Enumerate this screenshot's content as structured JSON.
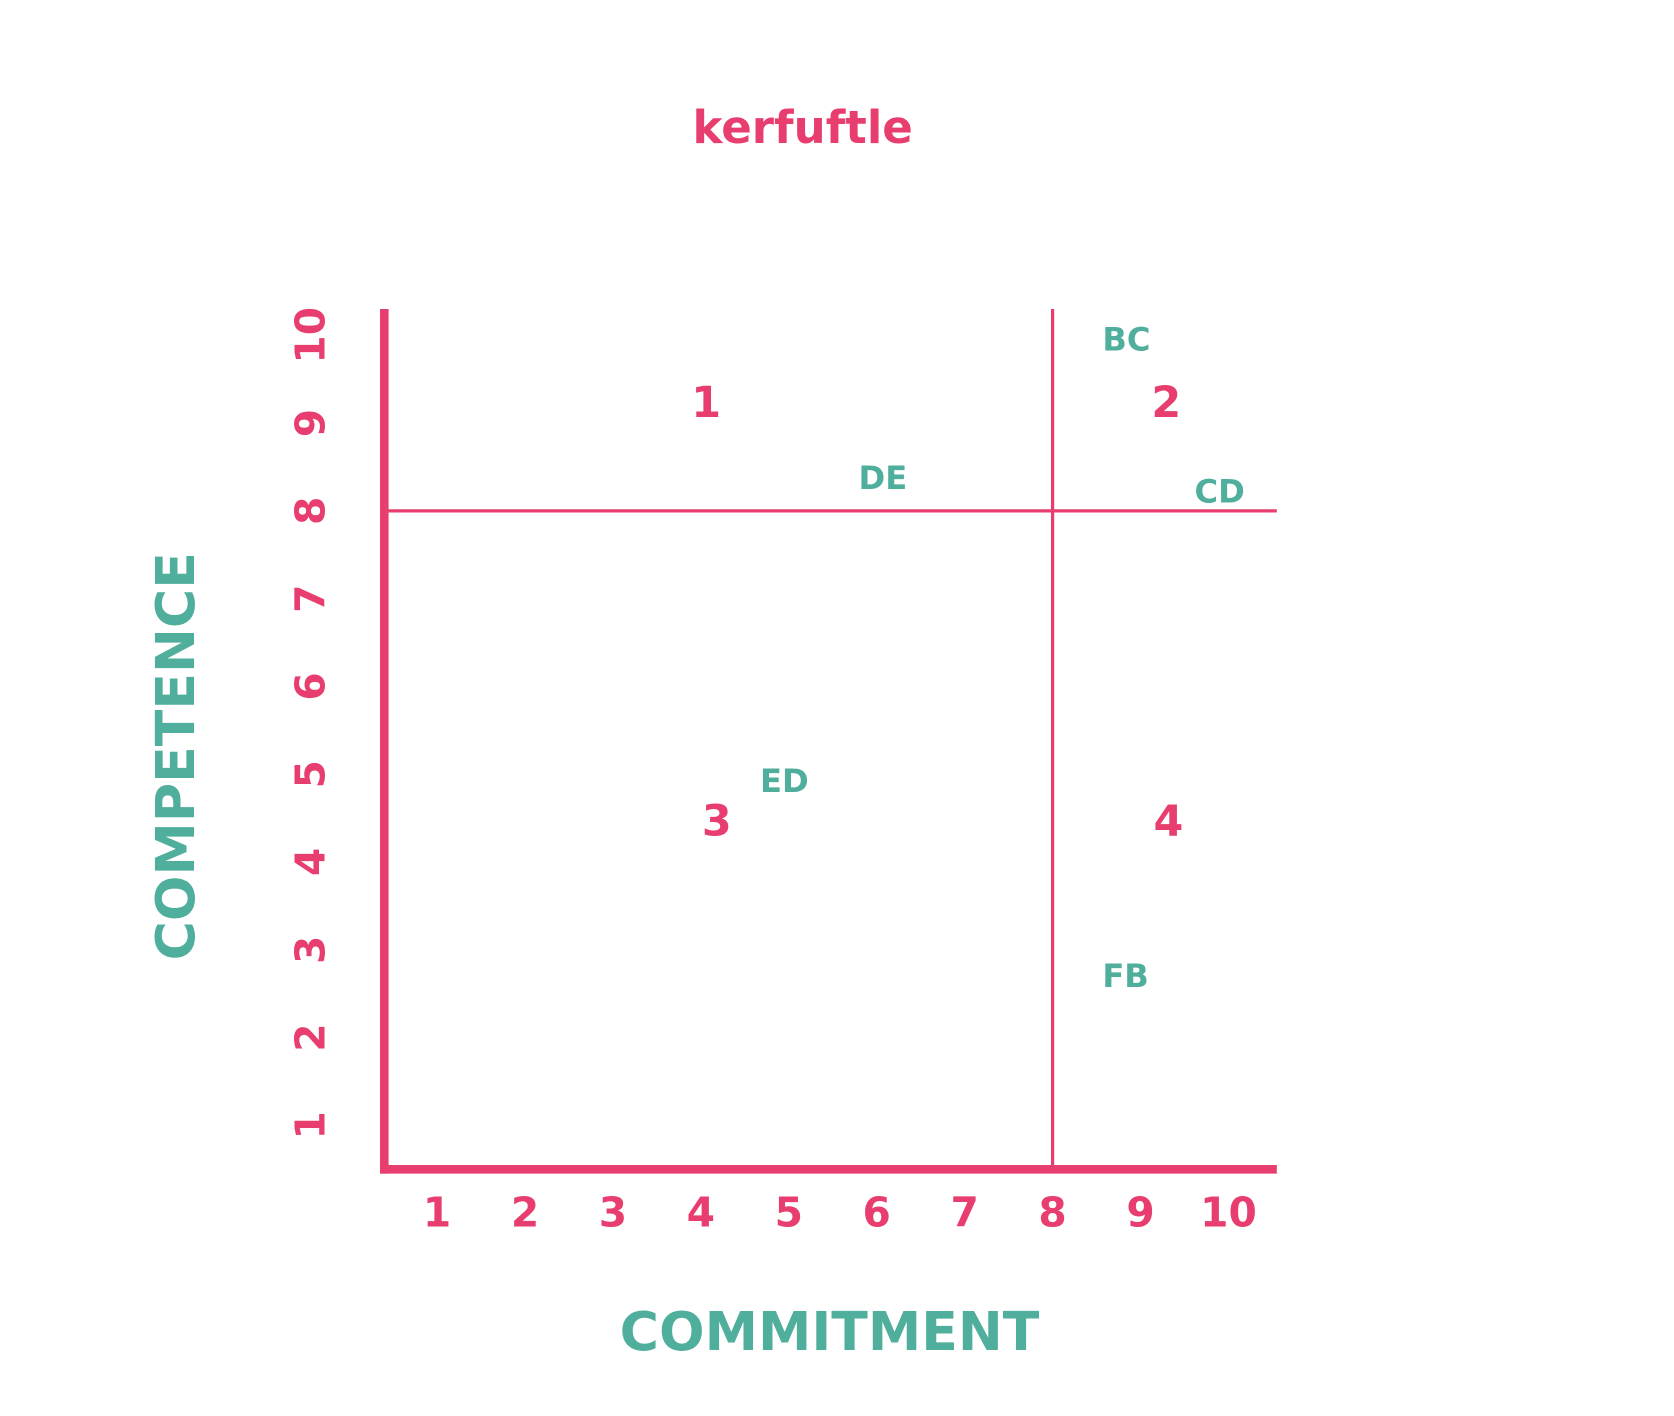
{
  "chart_data": {
    "type": "scatter",
    "title": "kerfuftle",
    "x_label": "COMMITMENT",
    "y_label": "COMPETENCE",
    "xlim": [
      0.4,
      10.55
    ],
    "ylim": [
      0.5,
      10.3
    ],
    "xticks": [
      1,
      2,
      3,
      4,
      5,
      6,
      7,
      8,
      9,
      10
    ],
    "yticks": [
      1,
      2,
      3,
      4,
      5,
      6,
      7,
      8,
      9,
      10
    ],
    "dividers": {
      "x": 8,
      "y": 8
    },
    "quadrant_labels": [
      "1",
      "2",
      "3",
      "4"
    ],
    "points": [
      {
        "label": "BC",
        "x": 8.84,
        "y": 9.93
      },
      {
        "label": "DE",
        "x": 6.07,
        "y": 8.35
      },
      {
        "label": "CD",
        "x": 9.9,
        "y": 8.2
      },
      {
        "label": "ED",
        "x": 4.95,
        "y": 4.9
      },
      {
        "label": "FB",
        "x": 8.83,
        "y": 2.68
      }
    ],
    "axis_color": "#e83e6f",
    "point_color": "#4fae9c"
  }
}
